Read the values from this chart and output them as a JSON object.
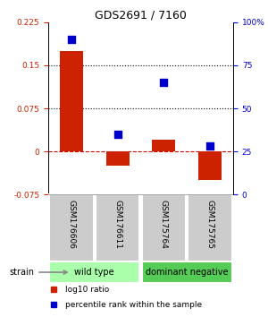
{
  "title": "GDS2691 / 7160",
  "samples": [
    "GSM176606",
    "GSM176611",
    "GSM175764",
    "GSM175765"
  ],
  "log10_ratio": [
    0.175,
    -0.025,
    0.02,
    -0.05
  ],
  "percentile_rank": [
    90,
    35,
    65,
    28
  ],
  "bar_color": "#cc2200",
  "dot_color": "#0000cc",
  "ylim_left": [
    -0.075,
    0.225
  ],
  "ylim_right": [
    0,
    100
  ],
  "yticks_left": [
    -0.075,
    0,
    0.075,
    0.15,
    0.225
  ],
  "yticks_right": [
    0,
    25,
    50,
    75,
    100
  ],
  "hlines": [
    0.075,
    0.15
  ],
  "groups": [
    {
      "label": "wild type",
      "indices": [
        0,
        1
      ],
      "color": "#aaffaa"
    },
    {
      "label": "dominant negative",
      "indices": [
        2,
        3
      ],
      "color": "#55cc55"
    }
  ],
  "group_label_prefix": "strain",
  "legend": [
    {
      "label": "log10 ratio",
      "color": "#cc2200"
    },
    {
      "label": "percentile rank within the sample",
      "color": "#0000cc"
    }
  ],
  "background_color": "#ffffff",
  "bar_width": 0.5,
  "dot_size": 35,
  "sample_box_color": "#cccccc",
  "zero_line_color": "#cc0000",
  "zero_line_style": "--"
}
